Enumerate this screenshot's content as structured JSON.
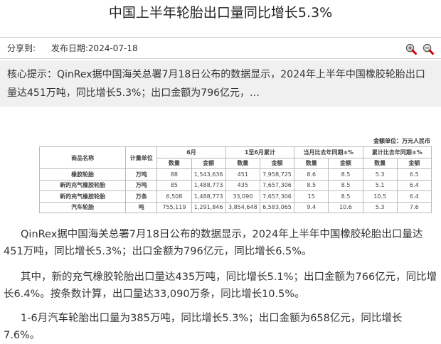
{
  "title": "中国上半年轮胎出口量同比增长5.3%",
  "meta": {
    "share_label": "分享到:",
    "date_label": "发布日期:",
    "date": "2024-07-18"
  },
  "icons": [
    "zoom-in-icon",
    "zoom-out-icon"
  ],
  "summary": "核心提示：QinRex据中国海关总署7月18日公布的数据显示，2024年上半年中国橡胶轮胎出口量达451万吨，同比增长5.3%；出口金额为796亿元，…",
  "table": {
    "unit_note": "金额单位：万元人民币",
    "headers": {
      "name": "商品名称",
      "unit": "计量单位",
      "groups": [
        "6月",
        "1至6月累计",
        "当月比去年同期±%",
        "累计比去年同期±%"
      ],
      "sub": [
        "数量",
        "金额"
      ]
    },
    "rows": [
      {
        "name": "橡胶轮胎",
        "unit": "万吨",
        "values": [
          "88",
          "1,543,636",
          "451",
          "7,958,725",
          "8.6",
          "8.5",
          "5.3",
          "6.5"
        ]
      },
      {
        "name": "新的充气橡胶轮胎",
        "unit": "万吨",
        "values": [
          "85",
          "1,488,773",
          "435",
          "7,657,306",
          "8.5",
          "8.5",
          "5.1",
          "6.4"
        ]
      },
      {
        "name": "新的充气橡胶轮胎",
        "unit": "万条",
        "values": [
          "6,508",
          "1,488,773",
          "33,090",
          "7,657,306",
          "15",
          "8.5",
          "10.5",
          "6.4"
        ]
      },
      {
        "name": "汽车轮胎",
        "unit": "吨",
        "values": [
          "755,119",
          "1,291,846",
          "3,854,648",
          "6,583,065",
          "9.4",
          "10.6",
          "5.3",
          "7.6"
        ]
      }
    ]
  },
  "paragraphs": [
    "QinRex据中国海关总署7月18日公布的数据显示，2024年上半年中国橡胶轮胎出口量达451万吨，同比增长5.3%；出口金额为796亿元，同比增长6.5%。",
    "其中，新的充气橡胶轮胎出口量达435万吨，同比增长5.1%；出口金额为766亿元，同比增长6.4%。按条数计算，出口量达33,090万条，同比增长10.5%。",
    "1-6月汽车轮胎出口量为385万吨，同比增长5.3%；出口金额为658亿元，同比增长7.6%。"
  ]
}
